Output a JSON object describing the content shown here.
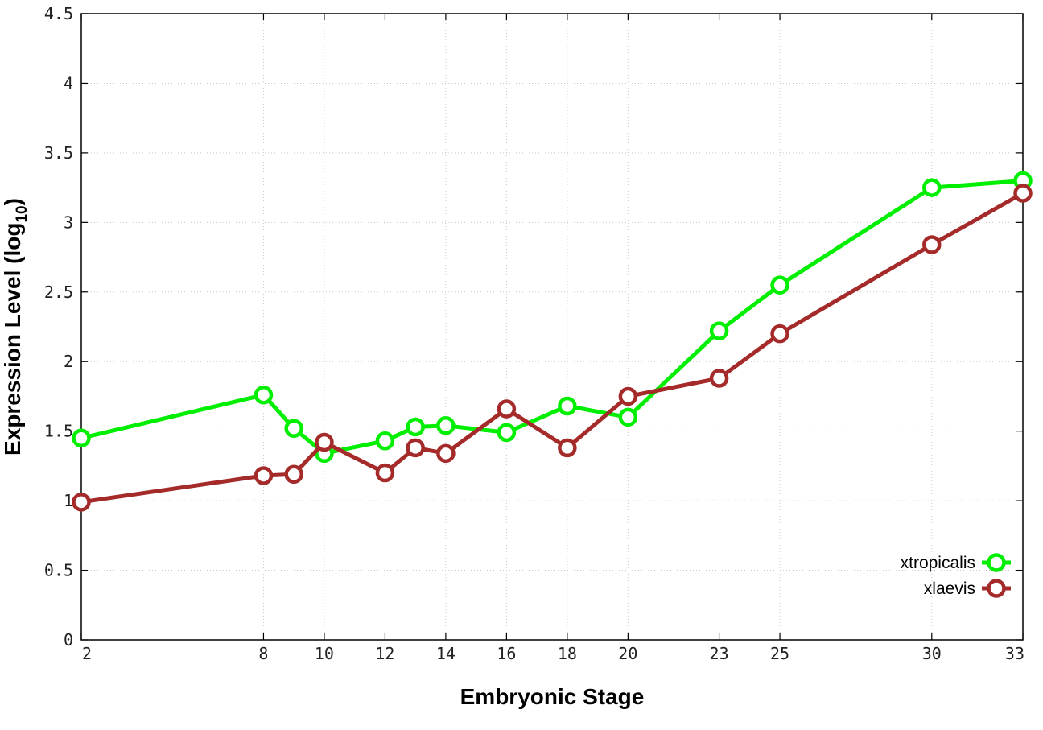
{
  "chart_data": {
    "type": "line",
    "title": "",
    "xlabel": "Embryonic Stage",
    "ylabel_main": "Expression Level (log",
    "ylabel_sub": "10",
    "ylabel_close": ")",
    "x": [
      2,
      8,
      9,
      10,
      12,
      13,
      14,
      16,
      18,
      20,
      23,
      25,
      30,
      33
    ],
    "x_tick_values": [
      2,
      8,
      10,
      12,
      14,
      16,
      18,
      20,
      23,
      25,
      30,
      33
    ],
    "x_tick_labels": [
      "2",
      "8",
      "10",
      "12",
      "14",
      "16",
      "18",
      "20",
      "23",
      "25",
      "30",
      "33"
    ],
    "y_tick_values": [
      0,
      0.5,
      1,
      1.5,
      2,
      2.5,
      3,
      3.5,
      4,
      4.5
    ],
    "y_tick_labels": [
      "0",
      "0.5",
      "1",
      "1.5",
      "2",
      "2.5",
      "3",
      "3.5",
      "4",
      "4.5"
    ],
    "xlim": [
      2,
      33
    ],
    "ylim": [
      0,
      4.5
    ],
    "grid": true,
    "legend_position": "bottom-right",
    "series": [
      {
        "name": "xtropicalis",
        "color": "#00ee00",
        "values": [
          1.45,
          1.76,
          1.52,
          1.34,
          1.43,
          1.53,
          1.54,
          1.49,
          1.68,
          1.6,
          2.22,
          2.55,
          3.25,
          3.3
        ]
      },
      {
        "name": "xlaevis",
        "color": "#a52a2a",
        "values": [
          0.99,
          1.18,
          1.19,
          1.42,
          1.2,
          1.38,
          1.34,
          1.66,
          1.38,
          1.75,
          1.88,
          2.2,
          2.84,
          3.21
        ]
      }
    ]
  }
}
